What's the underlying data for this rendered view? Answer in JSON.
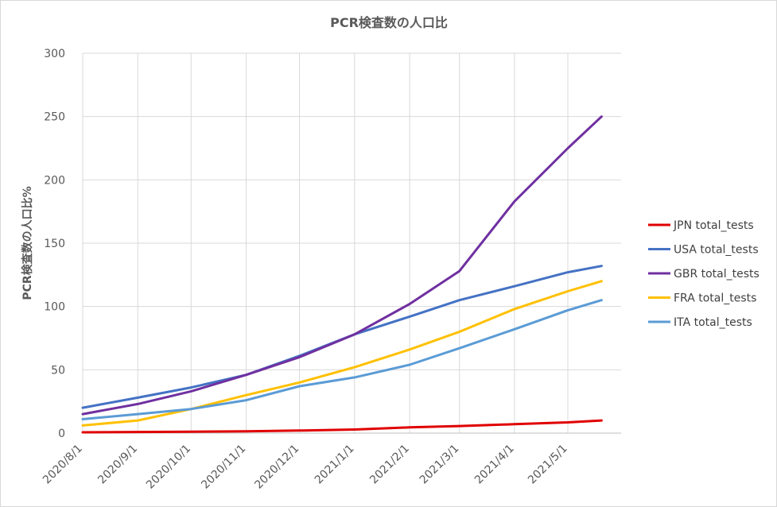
{
  "chart_data": {
    "type": "line",
    "title": "PCR検査数の人口比",
    "xlabel": "",
    "ylabel": "PCR検査数の人口比%",
    "ylim": [
      0,
      300
    ],
    "yticks": [
      0,
      50,
      100,
      150,
      200,
      250,
      300
    ],
    "x_ticks": [
      "2020/8/1",
      "2020/9/1",
      "2020/10/1",
      "2020/11/1",
      "2020/12/1",
      "2021/1/1",
      "2021/2/1",
      "2021/3/1",
      "2021/4/1",
      "2021/5/1"
    ],
    "x": [
      "2020/8/1",
      "2020/9/1",
      "2020/10/1",
      "2020/11/1",
      "2020/12/1",
      "2021/1/1",
      "2021/2/1",
      "2021/3/1",
      "2021/4/1",
      "2021/5/1",
      "2021/5/20"
    ],
    "grid": true,
    "legend_position": "right",
    "series": [
      {
        "name": "JPN total_tests",
        "color": "#e00000",
        "values": [
          0.6,
          0.9,
          1.1,
          1.4,
          2.0,
          2.8,
          4.5,
          5.6,
          7.0,
          8.5,
          10.0
        ]
      },
      {
        "name": "USA total_tests",
        "color": "#4472c4",
        "values": [
          20,
          28,
          36,
          46,
          61,
          78,
          92,
          105,
          116,
          127,
          132
        ]
      },
      {
        "name": "GBR total_tests",
        "color": "#7030a0",
        "values": [
          15,
          23,
          33,
          46,
          60,
          78,
          102,
          128,
          183,
          225,
          250
        ]
      },
      {
        "name": "FRA total_tests",
        "color": "#ffc000",
        "values": [
          6,
          10,
          19,
          30,
          40,
          52,
          66,
          80,
          98,
          112,
          120
        ]
      },
      {
        "name": "ITA total_tests",
        "color": "#5b9bd5",
        "values": [
          11,
          15,
          19,
          26,
          37,
          44,
          54,
          67,
          82,
          97,
          105
        ]
      }
    ]
  }
}
